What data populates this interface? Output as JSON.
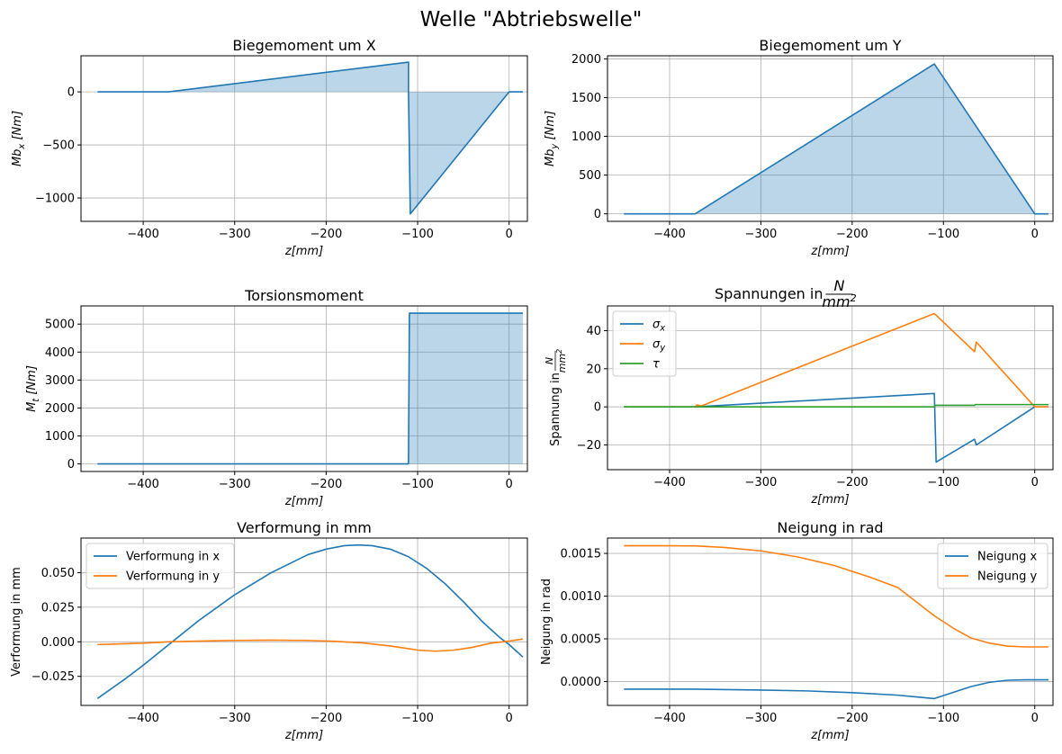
{
  "figure_title": "Welle \"Abtriebswelle\"",
  "colors": {
    "blue": "#1f77b4",
    "orange": "#ff7f0e",
    "green": "#2ca02c",
    "fill": "#1f77b4"
  },
  "chart_data": [
    {
      "id": "mbx",
      "type": "area",
      "title": "Biegemoment um X",
      "xlabel_main": "z",
      "xlabel_unit": "[mm]",
      "ylabel_main": "Mb",
      "ylabel_sub": "x",
      "ylabel_unit": "[Nm]",
      "xlim": [
        -468,
        20
      ],
      "ylim": [
        -1220,
        340
      ],
      "xticks": [
        -400,
        -300,
        -200,
        -100,
        0
      ],
      "yticks": [
        -1000,
        -500,
        0
      ],
      "fill": true,
      "grid": true,
      "series": [
        {
          "color": "#1f77b4",
          "x": [
            -450,
            -372,
            -110,
            -110,
            -108,
            0,
            15
          ],
          "y": [
            0,
            0,
            280,
            0,
            -1150,
            0,
            0
          ]
        }
      ]
    },
    {
      "id": "mby",
      "type": "area",
      "title": "Biegemoment um Y",
      "xlabel_main": "z",
      "xlabel_unit": "[mm]",
      "ylabel_main": "Mb",
      "ylabel_sub": "y",
      "ylabel_unit": "[Nm]",
      "xlim": [
        -468,
        20
      ],
      "ylim": [
        -97,
        2040
      ],
      "xticks": [
        -400,
        -300,
        -200,
        -100,
        0
      ],
      "yticks": [
        0,
        500,
        1000,
        1500,
        2000
      ],
      "fill": true,
      "grid": true,
      "series": [
        {
          "color": "#1f77b4",
          "x": [
            -450,
            -372,
            -110,
            0,
            15
          ],
          "y": [
            0,
            0,
            1935,
            0,
            0
          ]
        }
      ]
    },
    {
      "id": "mt",
      "type": "area",
      "title": "Torsionsmoment",
      "xlabel_main": "z",
      "xlabel_unit": "[mm]",
      "ylabel_main": "M",
      "ylabel_sub": "t",
      "ylabel_unit": "[Nm]",
      "xlim": [
        -468,
        20
      ],
      "ylim": [
        -270,
        5650
      ],
      "xticks": [
        -400,
        -300,
        -200,
        -100,
        0
      ],
      "yticks": [
        0,
        1000,
        2000,
        3000,
        4000,
        5000
      ],
      "fill": true,
      "grid": true,
      "series": [
        {
          "color": "#1f77b4",
          "x": [
            -450,
            -110,
            -109,
            15
          ],
          "y": [
            0,
            0,
            5390,
            5390
          ]
        }
      ]
    },
    {
      "id": "spannungen",
      "type": "line",
      "title_prefix": "Spannungen in",
      "title_frac_num": "N",
      "title_frac_den": "mm",
      "title_frac_exp": "2",
      "ylabel_prefix": "Spannung in",
      "xlabel_main": "z",
      "xlabel_unit": "[mm]",
      "xlim": [
        -468,
        20
      ],
      "ylim": [
        -33,
        53
      ],
      "xticks": [
        -400,
        -300,
        -200,
        -100,
        0
      ],
      "yticks": [
        -20,
        0,
        20,
        40
      ],
      "fill": false,
      "grid": true,
      "legend": {
        "position": "upper-left"
      },
      "series": [
        {
          "name": "σ",
          "name_sub": "x",
          "color": "#1f77b4",
          "x": [
            -450,
            -372,
            -110,
            -108,
            -66,
            -64,
            0,
            15
          ],
          "y": [
            0,
            0,
            7,
            -29,
            -17,
            -20,
            0,
            0
          ]
        },
        {
          "name": "σ",
          "name_sub": "y",
          "color": "#ff7f0e",
          "x": [
            -450,
            -372,
            -370,
            -365,
            -110,
            -66,
            -64,
            0,
            15
          ],
          "y": [
            0,
            0,
            1,
            0.5,
            49,
            29,
            34,
            0,
            0
          ]
        },
        {
          "name": "τ",
          "name_sub": "",
          "color": "#2ca02c",
          "x": [
            -450,
            -110,
            -109,
            -66,
            -65,
            15
          ],
          "y": [
            0,
            0,
            0.8,
            0.8,
            1.2,
            1.2
          ]
        }
      ]
    },
    {
      "id": "verformung",
      "type": "line",
      "title": "Verformung in mm",
      "xlabel_main": "z",
      "xlabel_unit": "[mm]",
      "ylabel_plain": "Verformung in mm",
      "xlim": [
        -468,
        20
      ],
      "ylim": [
        -0.046,
        0.075
      ],
      "xticks": [
        -400,
        -300,
        -200,
        -100,
        0
      ],
      "yticks": [
        -0.025,
        0.0,
        0.025,
        0.05
      ],
      "ytick_labels": [
        "−0.025",
        "0.000",
        "0.025",
        "0.050"
      ],
      "fill": false,
      "grid": true,
      "legend": {
        "position": "upper-left"
      },
      "series": [
        {
          "name": "Verformung in x",
          "color": "#1f77b4",
          "x": [
            -450,
            -420,
            -400,
            -372,
            -340,
            -300,
            -260,
            -220,
            -200,
            -180,
            -165,
            -150,
            -130,
            -110,
            -90,
            -70,
            -50,
            -30,
            -10,
            0,
            15
          ],
          "y": [
            -0.041,
            -0.027,
            -0.017,
            -0.002,
            0.015,
            0.034,
            0.05,
            0.063,
            0.067,
            0.0695,
            0.07,
            0.0695,
            0.067,
            0.0615,
            0.053,
            0.042,
            0.029,
            0.015,
            0.003,
            -0.002,
            -0.011
          ]
        },
        {
          "name": "Verformung in y",
          "color": "#ff7f0e",
          "x": [
            -450,
            -400,
            -372,
            -340,
            -300,
            -260,
            -220,
            -190,
            -160,
            -130,
            -110,
            -100,
            -80,
            -60,
            -40,
            -20,
            0,
            15
          ],
          "y": [
            -0.002,
            -0.001,
            0.0,
            0.0005,
            0.001,
            0.0012,
            0.001,
            0.0003,
            -0.0008,
            -0.003,
            -0.005,
            -0.006,
            -0.0068,
            -0.006,
            -0.004,
            -0.001,
            0.0005,
            0.002
          ]
        }
      ]
    },
    {
      "id": "neigung",
      "type": "line",
      "title": "Neigung in rad",
      "xlabel_main": "z",
      "xlabel_unit": "[mm]",
      "ylabel_plain": "Neigung in rad",
      "xlim": [
        -468,
        20
      ],
      "ylim": [
        -0.00028,
        0.00168
      ],
      "xticks": [
        -400,
        -300,
        -200,
        -100,
        0
      ],
      "yticks": [
        0.0,
        0.0005,
        0.001,
        0.0015
      ],
      "ytick_labels": [
        "0.0000",
        "0.0005",
        "0.0010",
        "0.0015"
      ],
      "fill": false,
      "grid": true,
      "legend": {
        "position": "upper-right"
      },
      "series": [
        {
          "name": "Neigung x",
          "color": "#1f77b4",
          "x": [
            -450,
            -372,
            -300,
            -250,
            -200,
            -150,
            -110,
            -90,
            -70,
            -50,
            -30,
            -10,
            0,
            15
          ],
          "y": [
            -9e-05,
            -9e-05,
            -0.0001,
            -0.00011,
            -0.00013,
            -0.00016,
            -0.0002,
            -0.00013,
            -6e-05,
            -1e-05,
            1.5e-05,
            2e-05,
            2e-05,
            2e-05
          ]
        },
        {
          "name": "Neigung y",
          "color": "#ff7f0e",
          "x": [
            -450,
            -400,
            -372,
            -340,
            -300,
            -260,
            -220,
            -180,
            -150,
            -110,
            -90,
            -70,
            -50,
            -30,
            -10,
            0,
            15
          ],
          "y": [
            0.00159,
            0.00159,
            0.001588,
            0.00157,
            0.00153,
            0.00146,
            0.00136,
            0.00122,
            0.0011,
            0.00077,
            0.00063,
            0.00051,
            0.00045,
            0.000415,
            0.000405,
            0.000405,
            0.000405
          ]
        }
      ]
    }
  ]
}
